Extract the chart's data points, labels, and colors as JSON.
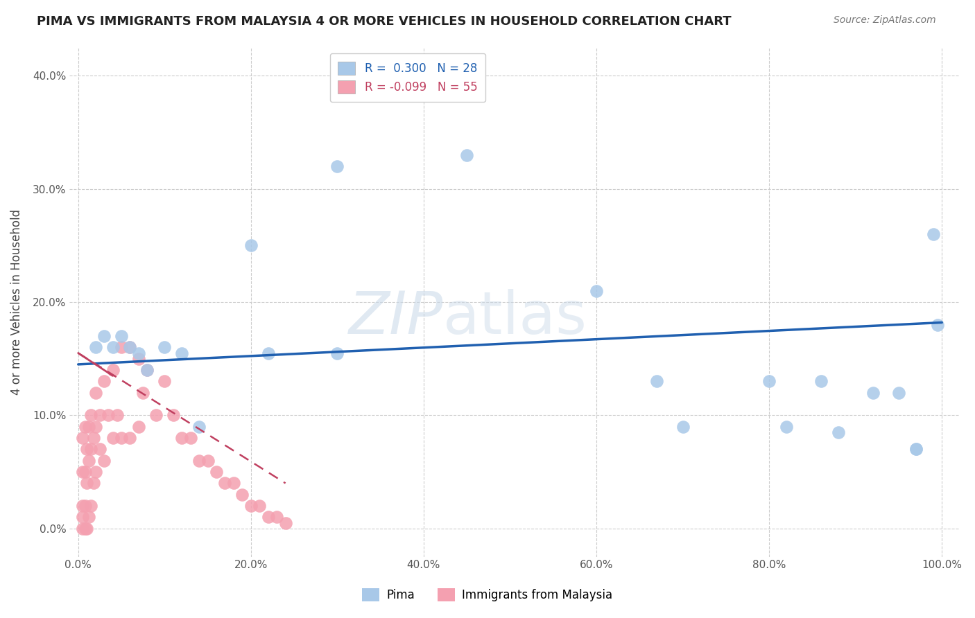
{
  "title": "PIMA VS IMMIGRANTS FROM MALAYSIA 4 OR MORE VEHICLES IN HOUSEHOLD CORRELATION CHART",
  "source": "Source: ZipAtlas.com",
  "ylabel": "4 or more Vehicles in Household",
  "xlim": [
    -0.01,
    1.02
  ],
  "ylim": [
    -0.025,
    0.425
  ],
  "xticks": [
    0.0,
    0.2,
    0.4,
    0.6,
    0.8,
    1.0
  ],
  "xticklabels": [
    "0.0%",
    "20.0%",
    "40.0%",
    "60.0%",
    "80.0%",
    "100.0%"
  ],
  "yticks": [
    0.0,
    0.1,
    0.2,
    0.3,
    0.4
  ],
  "yticklabels": [
    "0.0%",
    "10.0%",
    "20.0%",
    "30.0%",
    "40.0%"
  ],
  "legend_R_blue": "0.300",
  "legend_N_blue": "28",
  "legend_R_pink": "-0.099",
  "legend_N_pink": "55",
  "pima_color": "#a8c8e8",
  "malaysia_color": "#f4a0b0",
  "trendline_blue_color": "#2060b0",
  "trendline_pink_color": "#c04060",
  "background_color": "#ffffff",
  "grid_color": "#cccccc",
  "pima_x": [
    0.02,
    0.03,
    0.04,
    0.05,
    0.06,
    0.07,
    0.08,
    0.1,
    0.12,
    0.14,
    0.2,
    0.22,
    0.3,
    0.6,
    0.67,
    0.7,
    0.8,
    0.82,
    0.86,
    0.88,
    0.92,
    0.95,
    0.97,
    0.97,
    0.99,
    0.995,
    0.3,
    0.45
  ],
  "pima_y": [
    0.16,
    0.17,
    0.16,
    0.17,
    0.16,
    0.155,
    0.14,
    0.16,
    0.155,
    0.09,
    0.25,
    0.155,
    0.155,
    0.21,
    0.13,
    0.09,
    0.13,
    0.09,
    0.13,
    0.085,
    0.12,
    0.12,
    0.07,
    0.07,
    0.26,
    0.18,
    0.32,
    0.33
  ],
  "malaysia_x": [
    0.005,
    0.005,
    0.005,
    0.005,
    0.005,
    0.008,
    0.008,
    0.008,
    0.008,
    0.01,
    0.01,
    0.01,
    0.012,
    0.012,
    0.012,
    0.015,
    0.015,
    0.015,
    0.018,
    0.018,
    0.02,
    0.02,
    0.02,
    0.025,
    0.025,
    0.03,
    0.03,
    0.035,
    0.04,
    0.04,
    0.045,
    0.05,
    0.05,
    0.06,
    0.06,
    0.07,
    0.07,
    0.075,
    0.08,
    0.09,
    0.1,
    0.11,
    0.12,
    0.13,
    0.14,
    0.15,
    0.16,
    0.17,
    0.18,
    0.19,
    0.2,
    0.21,
    0.22,
    0.23,
    0.24
  ],
  "malaysia_y": [
    0.0,
    0.01,
    0.02,
    0.05,
    0.08,
    0.0,
    0.02,
    0.05,
    0.09,
    0.0,
    0.04,
    0.07,
    0.01,
    0.06,
    0.09,
    0.02,
    0.07,
    0.1,
    0.04,
    0.08,
    0.05,
    0.09,
    0.12,
    0.07,
    0.1,
    0.06,
    0.13,
    0.1,
    0.08,
    0.14,
    0.1,
    0.08,
    0.16,
    0.08,
    0.16,
    0.09,
    0.15,
    0.12,
    0.14,
    0.1,
    0.13,
    0.1,
    0.08,
    0.08,
    0.06,
    0.06,
    0.05,
    0.04,
    0.04,
    0.03,
    0.02,
    0.02,
    0.01,
    0.01,
    0.005
  ],
  "blue_trend_x": [
    0.0,
    1.0
  ],
  "blue_trend_y": [
    0.145,
    0.182
  ],
  "pink_trend_x": [
    0.0,
    0.24
  ],
  "pink_trend_y": [
    0.155,
    0.04
  ]
}
